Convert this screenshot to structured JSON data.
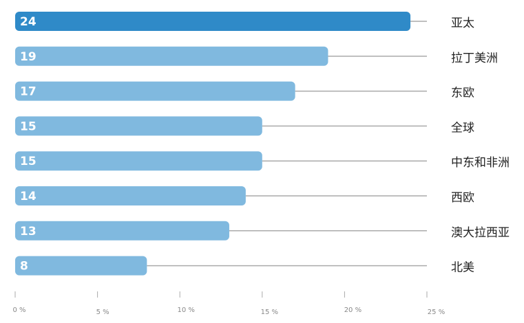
{
  "chart_data": {
    "type": "bar",
    "orientation": "horizontal",
    "categories": [
      "亚太",
      "拉丁美洲",
      "东欧",
      "全球",
      "中东和非洲",
      "西欧",
      "澳大拉西亚",
      "北美"
    ],
    "values": [
      24,
      19,
      17,
      15,
      15,
      14,
      13,
      8
    ],
    "colors": [
      "#2f8ac8",
      "#80b9df",
      "#80b9df",
      "#80b9df",
      "#80b9df",
      "#80b9df",
      "#80b9df",
      "#80b9df"
    ],
    "xlim": [
      0,
      25
    ],
    "xticks": [
      {
        "value": 0,
        "label": "0 %"
      },
      {
        "value": 5,
        "label": "5 %"
      },
      {
        "value": 10,
        "label": "10 %"
      },
      {
        "value": 15,
        "label": "15 %"
      },
      {
        "value": 20,
        "label": "20 %"
      },
      {
        "value": 25,
        "label": "25 %"
      }
    ]
  }
}
